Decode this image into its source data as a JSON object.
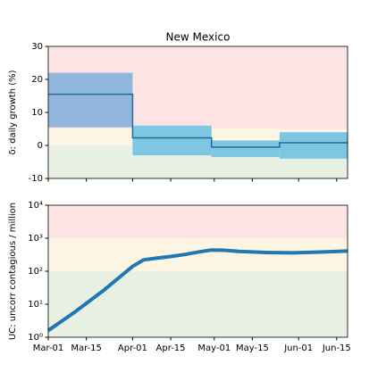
{
  "chart_data": [
    {
      "type": "step",
      "title": "New Mexico",
      "ylabel": "δ: daily growth (%)",
      "ylim": [
        -10,
        30
      ],
      "yticks": [
        -10,
        0,
        10,
        20,
        30
      ],
      "xlim": [
        0,
        110
      ],
      "zones": [
        {
          "low": -10,
          "high": 0,
          "color": "#e7f0e2"
        },
        {
          "low": 0,
          "high": 5,
          "color": "#fdf5e3"
        },
        {
          "low": 5,
          "high": 30,
          "color": "#fde4e4"
        }
      ],
      "line_color": "#1f6aa5",
      "segments": [
        {
          "start": 0,
          "end": 31,
          "value": 15.5,
          "low": 5.5,
          "high": 22,
          "color": "#93b6de"
        },
        {
          "start": 31,
          "end": 60,
          "value": 2.3,
          "low": -3,
          "high": 6,
          "color": "#7ec6e2"
        },
        {
          "start": 60,
          "end": 85,
          "value": -0.5,
          "low": -3.5,
          "high": 1.5,
          "color": "#7ec6e2"
        },
        {
          "start": 85,
          "end": 110,
          "value": 0.8,
          "low": -4,
          "high": 4,
          "color": "#7ec6e2"
        }
      ]
    },
    {
      "type": "line",
      "ylabel": "UC: uncorr contagious / million",
      "log_scale": true,
      "ylim": [
        1,
        10000
      ],
      "yticks": [
        {
          "value": 1,
          "label": "10⁰"
        },
        {
          "value": 10,
          "label": "10¹"
        },
        {
          "value": 100,
          "label": "10²"
        },
        {
          "value": 1000,
          "label": "10³"
        },
        {
          "value": 10000,
          "label": "10⁴"
        }
      ],
      "xlim": [
        0,
        110
      ],
      "xticks": [
        {
          "value": 0,
          "label": "Mar-01"
        },
        {
          "value": 14,
          "label": "Mar-15"
        },
        {
          "value": 31,
          "label": "Apr-01"
        },
        {
          "value": 45,
          "label": "Apr-15"
        },
        {
          "value": 61,
          "label": "May-01"
        },
        {
          "value": 75,
          "label": "May-15"
        },
        {
          "value": 92,
          "label": "Jun-01"
        },
        {
          "value": 106,
          "label": "Jun-15"
        }
      ],
      "zones": [
        {
          "low": 1,
          "high": 100,
          "color": "#e7f0e2"
        },
        {
          "low": 100,
          "high": 1000,
          "color": "#fdf5e3"
        },
        {
          "low": 1000,
          "high": 10000,
          "color": "#fde4e4"
        }
      ],
      "series": [
        {
          "color": "#1f77b4",
          "x": [
            0,
            10,
            20,
            31,
            35,
            40,
            45,
            50,
            55,
            60,
            65,
            70,
            80,
            90,
            100,
            110
          ],
          "values": [
            1.6,
            6,
            25,
            140,
            220,
            250,
            280,
            320,
            380,
            440,
            430,
            400,
            370,
            360,
            380,
            410
          ]
        }
      ]
    }
  ]
}
